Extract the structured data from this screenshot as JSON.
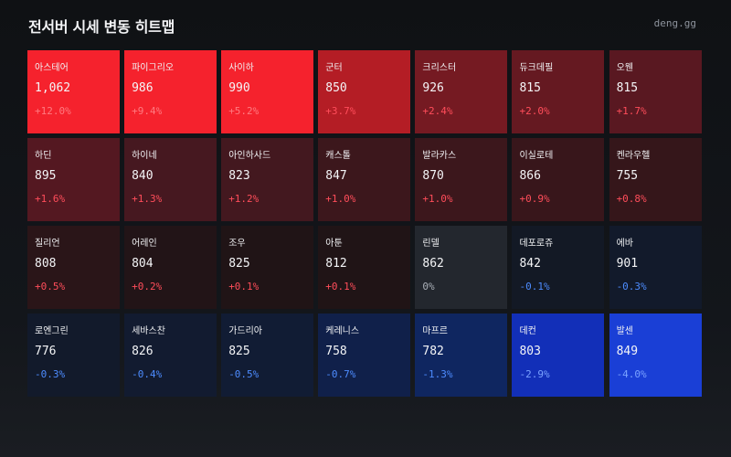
{
  "header": {
    "title": "전서버 시세 변동 히트맵",
    "brand": "deng.gg"
  },
  "colors": {
    "up_strong": "#f5222d",
    "up_text_on_strong": "#ff7a80",
    "up_text": "#ff4d5a",
    "flat_bg": "#23272e",
    "flat_text": "#aab0b8",
    "down_text": "#4d8cff",
    "down_strong": "#1a3fd6",
    "down_text_on_strong": "#7aa2ff"
  },
  "chart_data": {
    "type": "heatmap",
    "title": "전서버 시세 변동 히트맵",
    "columns": 7,
    "cells": [
      {
        "name": "아스테어",
        "price": "1,062",
        "change_label": "+12.0%",
        "change": 12.0
      },
      {
        "name": "파이그리오",
        "price": "986",
        "change_label": "+9.4%",
        "change": 9.4
      },
      {
        "name": "사이하",
        "price": "990",
        "change_label": "+5.2%",
        "change": 5.2
      },
      {
        "name": "군터",
        "price": "850",
        "change_label": "+3.7%",
        "change": 3.7
      },
      {
        "name": "크리스터",
        "price": "926",
        "change_label": "+2.4%",
        "change": 2.4
      },
      {
        "name": "듀크데필",
        "price": "815",
        "change_label": "+2.0%",
        "change": 2.0
      },
      {
        "name": "오웬",
        "price": "815",
        "change_label": "+1.7%",
        "change": 1.7
      },
      {
        "name": "하딘",
        "price": "895",
        "change_label": "+1.6%",
        "change": 1.6
      },
      {
        "name": "하이네",
        "price": "840",
        "change_label": "+1.3%",
        "change": 1.3
      },
      {
        "name": "아인하사드",
        "price": "823",
        "change_label": "+1.2%",
        "change": 1.2
      },
      {
        "name": "캐스톨",
        "price": "847",
        "change_label": "+1.0%",
        "change": 1.0
      },
      {
        "name": "발라카스",
        "price": "870",
        "change_label": "+1.0%",
        "change": 1.0
      },
      {
        "name": "이실로테",
        "price": "866",
        "change_label": "+0.9%",
        "change": 0.9
      },
      {
        "name": "켄라우헬",
        "price": "755",
        "change_label": "+0.8%",
        "change": 0.8
      },
      {
        "name": "질리언",
        "price": "808",
        "change_label": "+0.5%",
        "change": 0.5
      },
      {
        "name": "어레인",
        "price": "804",
        "change_label": "+0.2%",
        "change": 0.2
      },
      {
        "name": "조우",
        "price": "825",
        "change_label": "+0.1%",
        "change": 0.1
      },
      {
        "name": "아툰",
        "price": "812",
        "change_label": "+0.1%",
        "change": 0.1
      },
      {
        "name": "린델",
        "price": "862",
        "change_label": "0%",
        "change": 0
      },
      {
        "name": "데포로쥬",
        "price": "842",
        "change_label": "-0.1%",
        "change": -0.1
      },
      {
        "name": "에바",
        "price": "901",
        "change_label": "-0.3%",
        "change": -0.3
      },
      {
        "name": "로엔그린",
        "price": "776",
        "change_label": "-0.3%",
        "change": -0.3
      },
      {
        "name": "세바스찬",
        "price": "826",
        "change_label": "-0.4%",
        "change": -0.4
      },
      {
        "name": "가드리아",
        "price": "825",
        "change_label": "-0.5%",
        "change": -0.5
      },
      {
        "name": "케레니스",
        "price": "758",
        "change_label": "-0.7%",
        "change": -0.7
      },
      {
        "name": "마프르",
        "price": "782",
        "change_label": "-1.3%",
        "change": -1.3
      },
      {
        "name": "데컨",
        "price": "803",
        "change_label": "-2.9%",
        "change": -2.9
      },
      {
        "name": "발센",
        "price": "849",
        "change_label": "-4.0%",
        "change": -4.0
      }
    ]
  }
}
